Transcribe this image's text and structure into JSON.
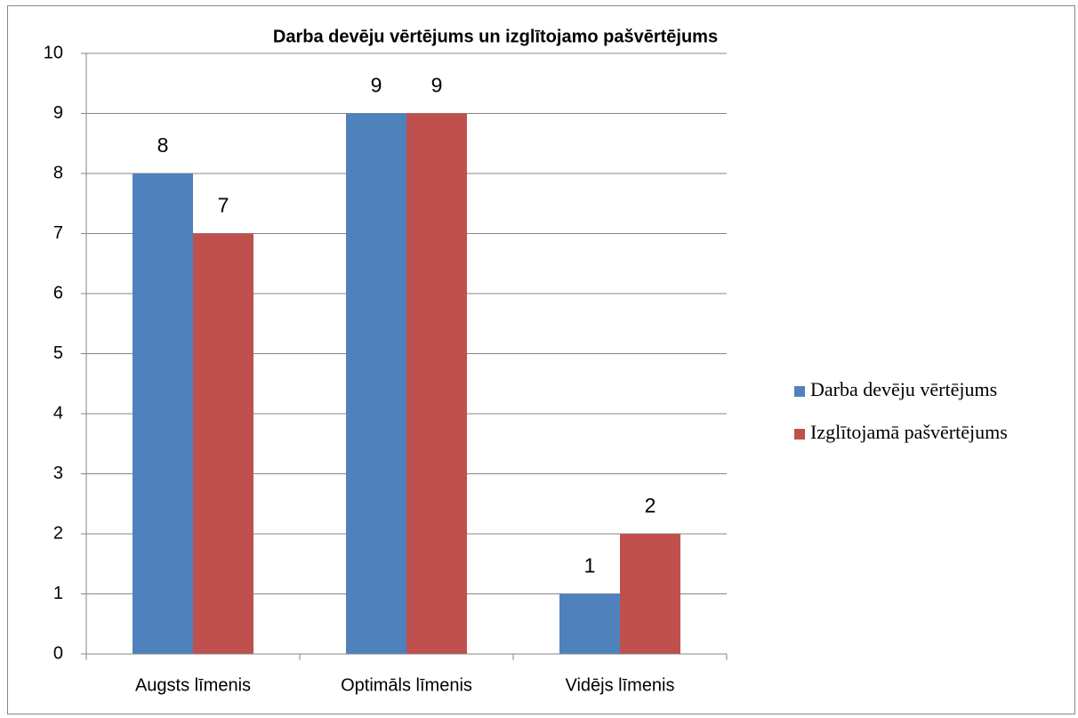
{
  "chart_data": {
    "type": "bar",
    "title": "Darba devēju vērtējums un izglītojamo pašvērtējums",
    "categories": [
      "Augsts līmenis",
      "Optimāls līmenis",
      "Vidējs līmenis"
    ],
    "series": [
      {
        "name": "Darba devēju vērtējums",
        "color": "#4f81bd",
        "values": [
          8,
          9,
          1
        ]
      },
      {
        "name": "Izglītojamā pašvērtējums",
        "color": "#c0504d",
        "values": [
          7,
          9,
          2
        ]
      }
    ],
    "ylim": [
      0,
      10
    ],
    "yticks": [
      0,
      1,
      2,
      3,
      4,
      5,
      6,
      7,
      8,
      9,
      10
    ],
    "grid": true,
    "legend": "right",
    "data_labels": true
  }
}
